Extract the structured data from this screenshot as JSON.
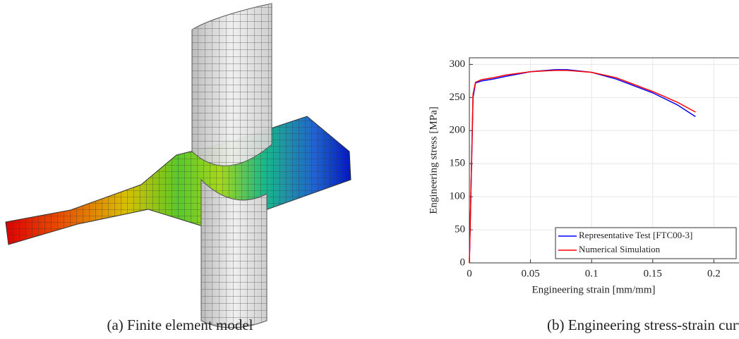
{
  "captions": [
    "(a) Finite element model",
    "(b) Engineering stress-strain curve"
  ],
  "chart_data": {
    "type": "line",
    "xlabel": "Engineering strain [mm/mm]",
    "ylabel": "Engineering stress [MPa]",
    "x": [
      0,
      0.003,
      0.005,
      0.01,
      0.02,
      0.03,
      0.05,
      0.07,
      0.08,
      0.1,
      0.12,
      0.15,
      0.17,
      0.185
    ],
    "series": [
      {
        "name": "Representative Test [FTC00-3]",
        "color": "#0000ff",
        "values": [
          0,
          250,
          272,
          275,
          278,
          282,
          289,
          292,
          292,
          288,
          278,
          257,
          239,
          221
        ]
      },
      {
        "name": "Numerical Simulation",
        "color": "#ff0000",
        "values": [
          0,
          255,
          273,
          277,
          280,
          284,
          289,
          291,
          291,
          288,
          280,
          259,
          243,
          228
        ]
      }
    ],
    "xlim": [
      0,
      0.22
    ],
    "ylim": [
      0,
      310
    ],
    "xticks": [
      0,
      0.05,
      0.1,
      0.15,
      0.2
    ],
    "yticks": [
      0,
      50,
      100,
      150,
      200,
      250,
      300
    ],
    "grid": true,
    "legend": "lower-right"
  }
}
